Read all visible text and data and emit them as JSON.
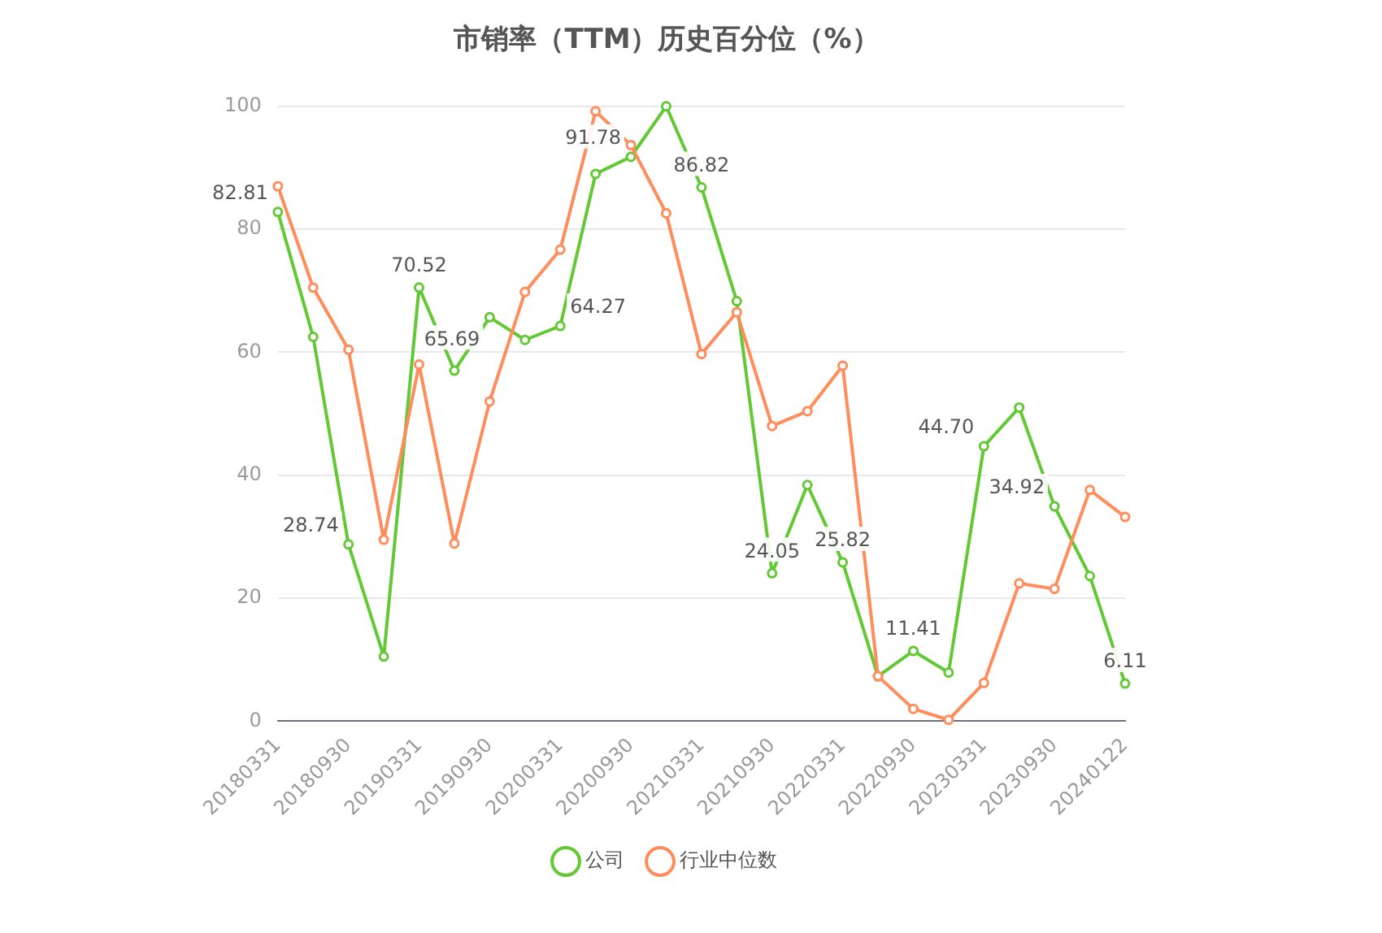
{
  "chart_data": {
    "type": "line",
    "title": "市销率（TTM）历史百分位（%）",
    "categories": [
      "20180331",
      null,
      "20180930",
      null,
      "20190331",
      null,
      "20190930",
      null,
      "20200331",
      null,
      "20200930",
      null,
      "20210331",
      null,
      "20210930",
      null,
      "20220331",
      null,
      "20220930",
      null,
      "20230331",
      null,
      "20230930",
      null,
      "20240122"
    ],
    "series": [
      {
        "name": "公司",
        "color": "#62c834",
        "values": [
          82.81,
          62.5,
          28.74,
          10.5,
          70.52,
          57,
          65.69,
          62,
          64.27,
          89,
          91.78,
          100,
          86.82,
          68.3,
          24.05,
          38.4,
          25.82,
          7.3,
          11.41,
          7.9,
          44.7,
          51,
          34.92,
          23.6,
          6.11
        ],
        "value_labels": [
          "82.81",
          null,
          "28.74",
          null,
          "70.52",
          null,
          "65.69",
          null,
          "64.27",
          null,
          "91.78",
          null,
          "86.82",
          null,
          "24.05",
          null,
          "25.82",
          null,
          "11.41",
          null,
          "44.70",
          null,
          "34.92",
          null,
          "6.11"
        ]
      },
      {
        "name": "行业中位数",
        "color": "#ff8c5a",
        "values": [
          87,
          70.5,
          60.4,
          29.5,
          58,
          28.9,
          52,
          69.8,
          76.7,
          99.2,
          93.7,
          82.6,
          59.7,
          66.5,
          48,
          50.4,
          57.8,
          7.3,
          2,
          0.2,
          6.2,
          22.4,
          21.5,
          37.6,
          33.2
        ]
      }
    ],
    "ylim": [
      0,
      100
    ],
    "yticks": [
      0,
      20,
      40,
      60,
      80,
      100
    ],
    "grid": "y",
    "legend": "bottom",
    "marker": "circle",
    "line_style": "solid"
  }
}
